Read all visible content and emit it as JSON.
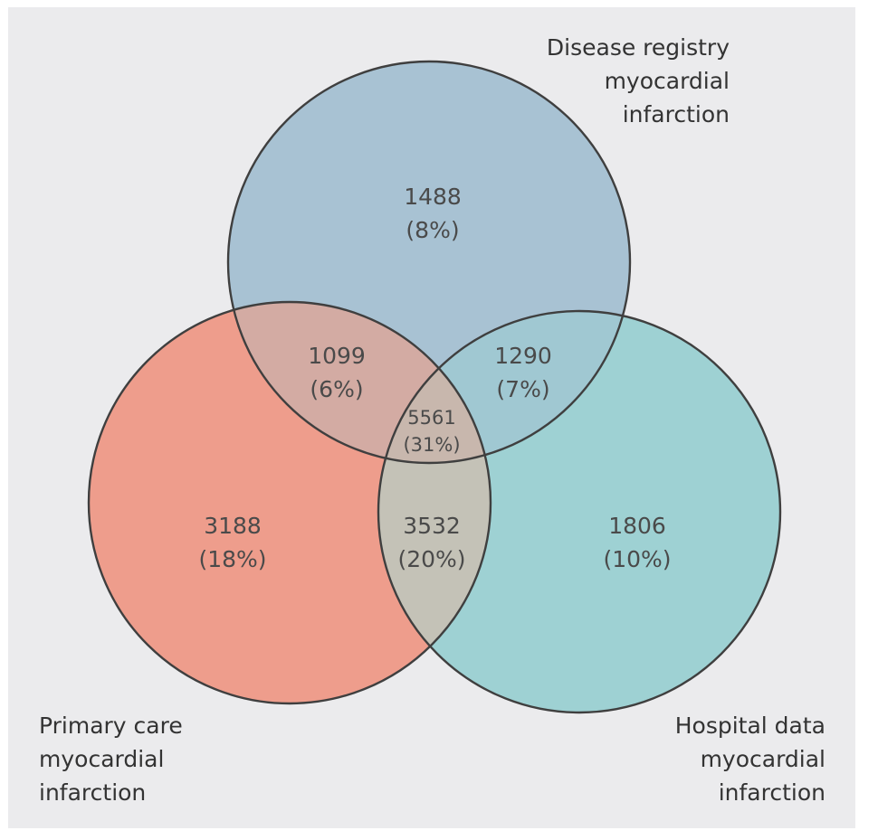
{
  "colors": {
    "background": "#ebebed",
    "disease_registry": "#a8c2d3",
    "primary_care": "#ee9d8c",
    "hospital_data": "#9ed1d3",
    "registry_primary_overlap": "#d3aba3",
    "registry_hospital_overlap": "#a0c8d2",
    "primary_hospital_overlap": "#c4c2b7",
    "all_three_overlap": "#c8b7ad",
    "outline": "#3f3f3f"
  },
  "sets": {
    "disease_registry": {
      "label_lines": [
        "Disease registry",
        "myocardial",
        "infarction"
      ]
    },
    "primary_care": {
      "label_lines": [
        "Primary care",
        "myocardial",
        "infarction"
      ]
    },
    "hospital_data": {
      "label_lines": [
        "Hospital data",
        "myocardial",
        "infarction"
      ]
    }
  },
  "regions": {
    "registry_only": {
      "count": "1488",
      "percent": "(8%)"
    },
    "registry_primary": {
      "count": "1099",
      "percent": "(6%)"
    },
    "registry_hospital": {
      "count": "1290",
      "percent": "(7%)"
    },
    "all_three": {
      "count": "5561",
      "percent": "(31%)"
    },
    "primary_only": {
      "count": "3188",
      "percent": "(18%)"
    },
    "primary_hospital": {
      "count": "3532",
      "percent": "(20%)"
    },
    "hospital_only": {
      "count": "1806",
      "percent": "(10%)"
    }
  }
}
